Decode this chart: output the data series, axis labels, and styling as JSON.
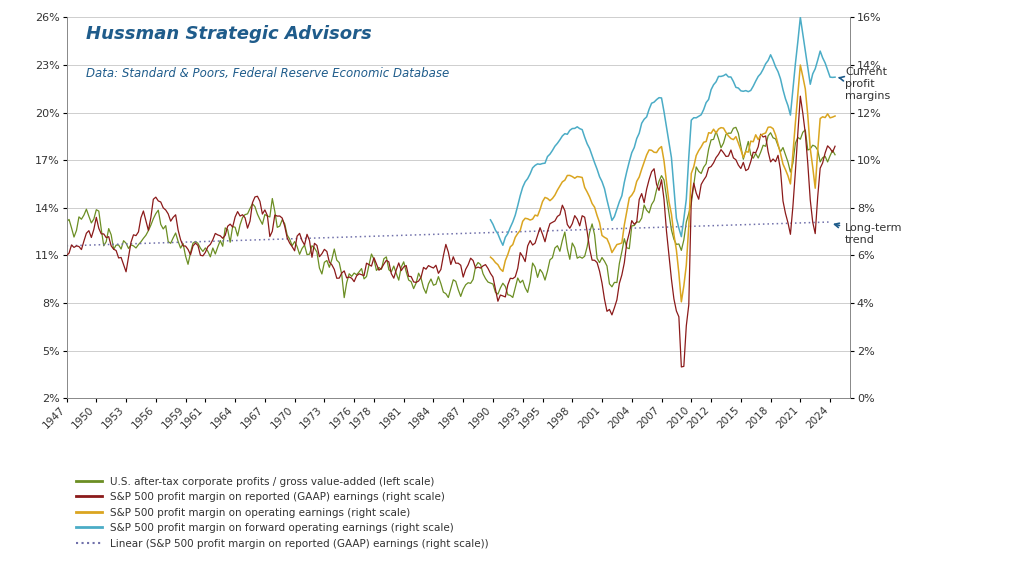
{
  "title_main": "Hussman Strategic Advisors",
  "title_sub": "Data: Standard & Poors, Federal Reserve Economic Database",
  "left_yticks": [
    2,
    5,
    8,
    11,
    14,
    17,
    20,
    23,
    26
  ],
  "right_yticks": [
    0,
    2,
    4,
    6,
    8,
    10,
    12,
    14,
    16
  ],
  "left_ylim": [
    2,
    26
  ],
  "right_ylim": [
    0,
    16
  ],
  "xlim": [
    1947,
    2026
  ],
  "xtick_years": [
    1947,
    1950,
    1953,
    1956,
    1959,
    1961,
    1964,
    1967,
    1970,
    1973,
    1976,
    1978,
    1981,
    1984,
    1987,
    1990,
    1993,
    1995,
    1998,
    2001,
    2004,
    2007,
    2010,
    2012,
    2015,
    2018,
    2021,
    2024
  ],
  "color_green": "#6B8E23",
  "color_darkred": "#8B1A1A",
  "color_gold": "#DAA520",
  "color_cyan": "#4BACC6",
  "color_dotted": "#7070AA",
  "bg_color": "#FFFFFF"
}
